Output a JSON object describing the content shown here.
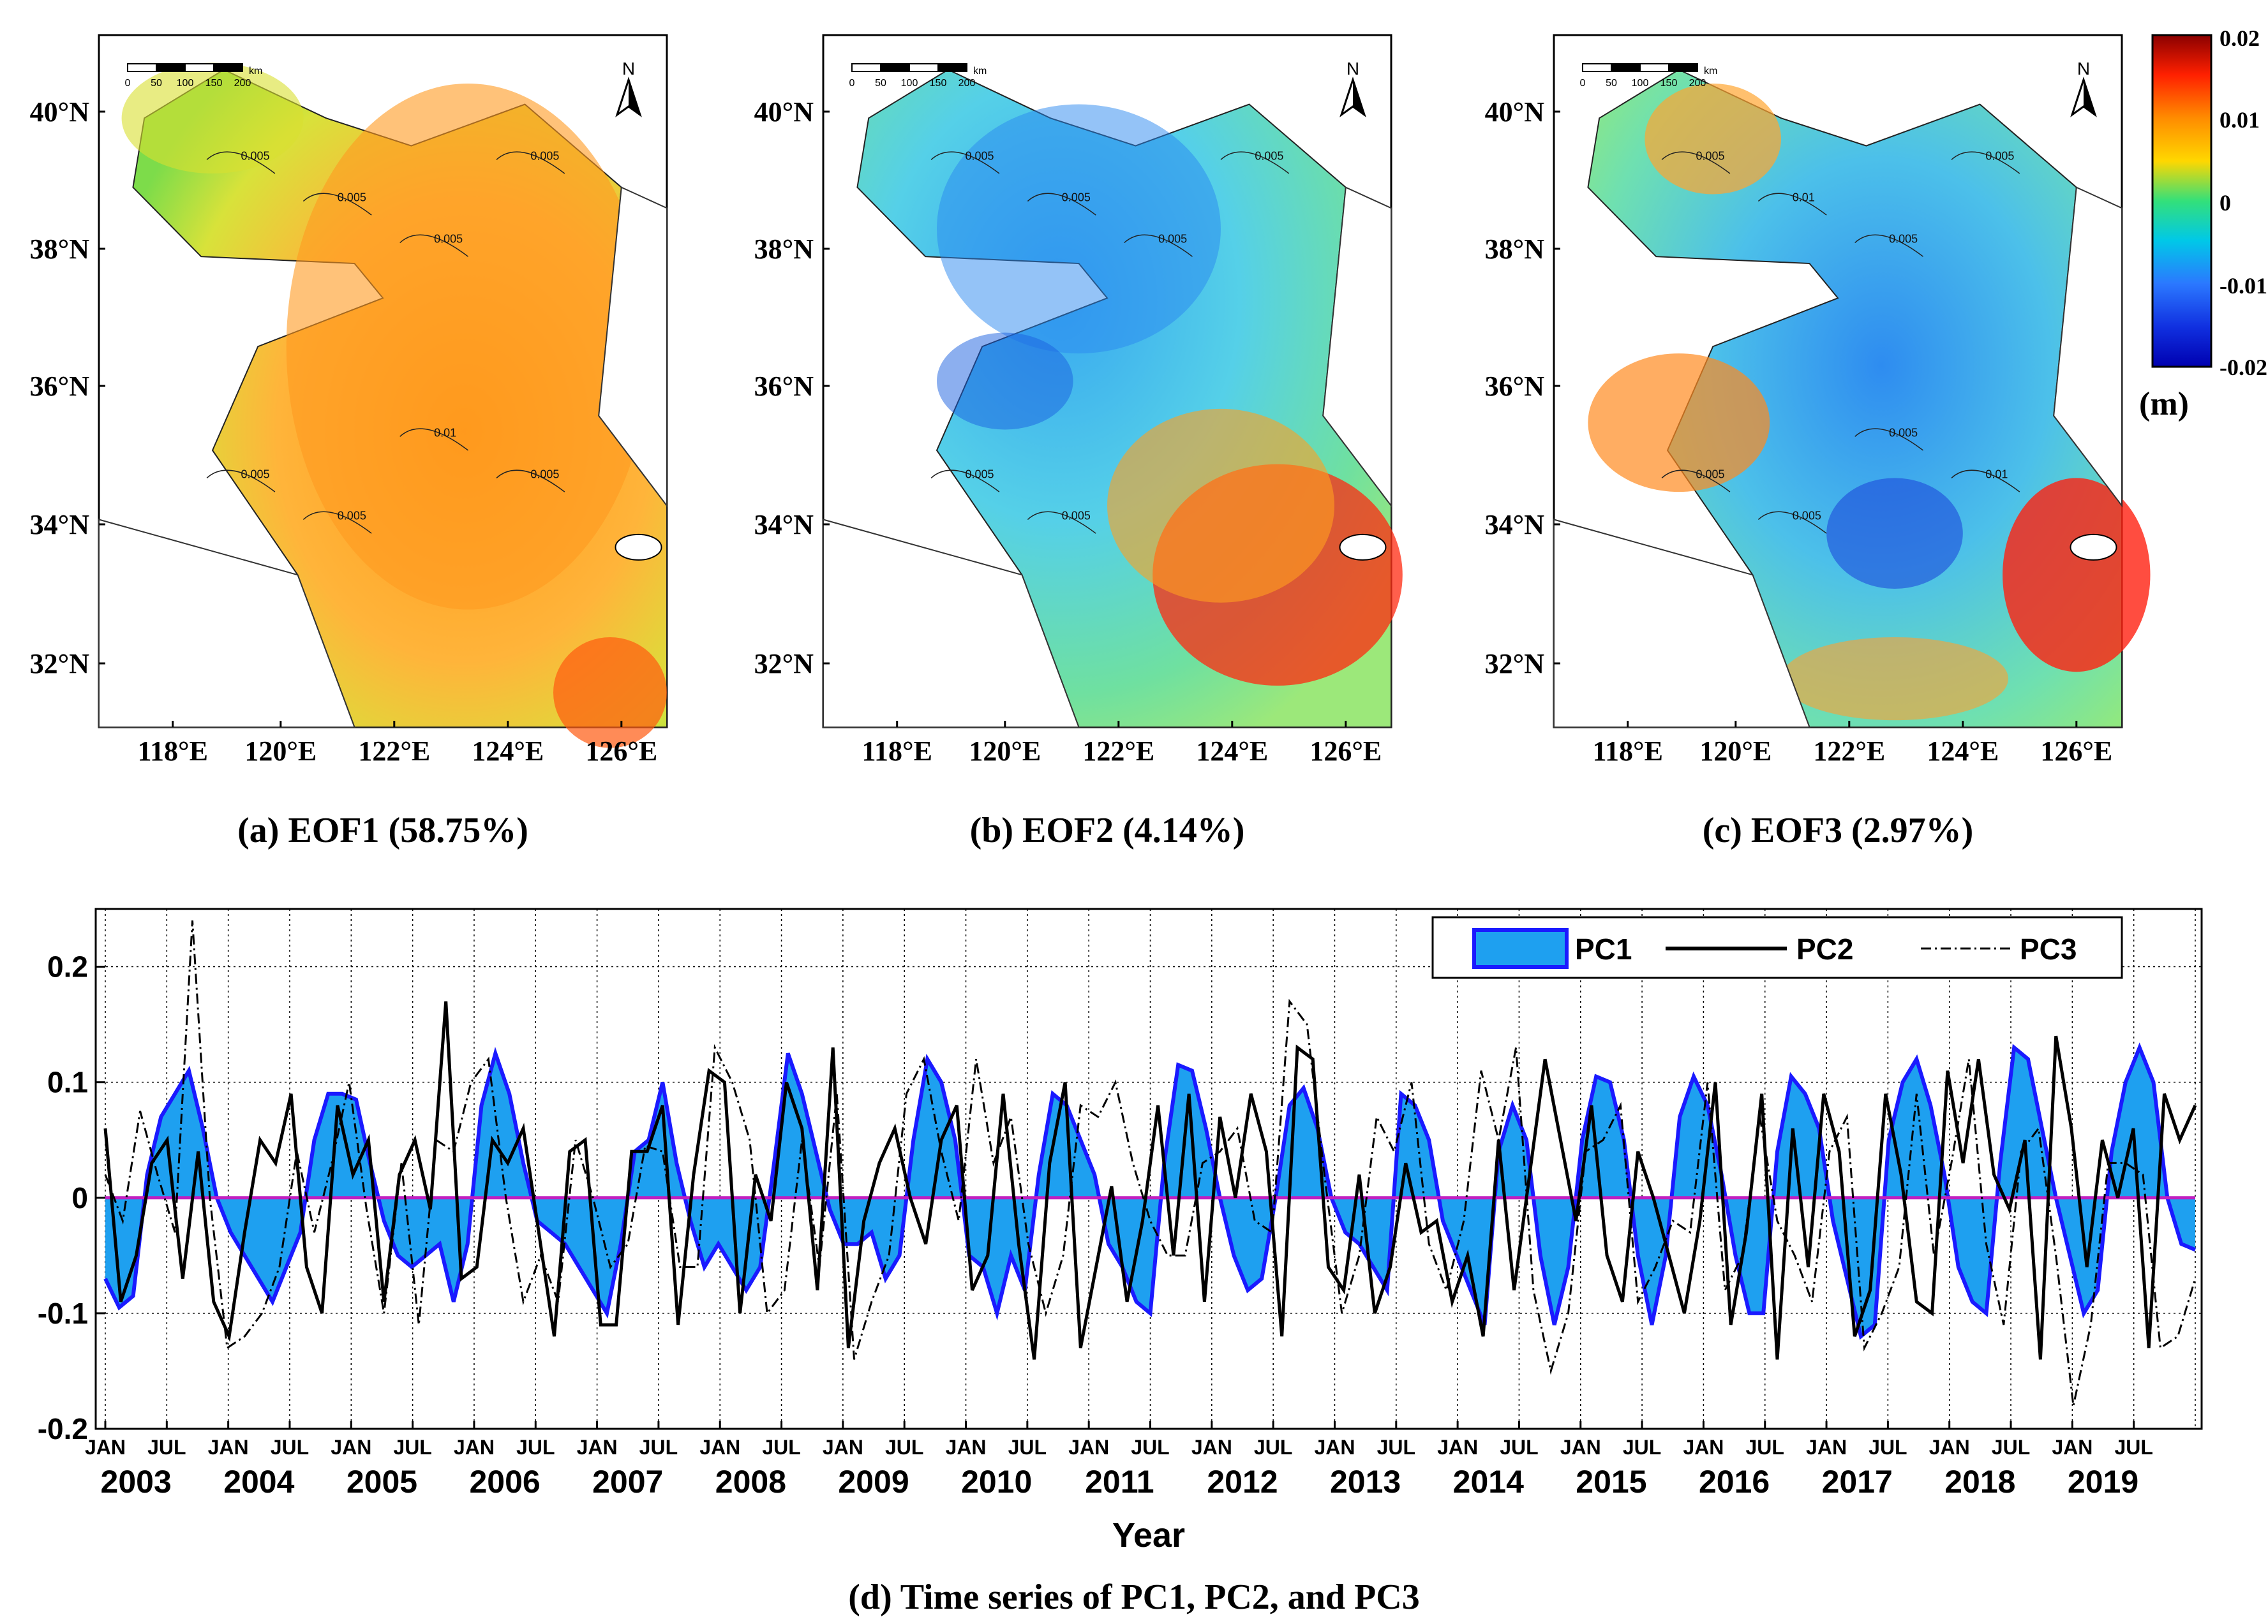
{
  "maps": [
    {
      "id": "eof1",
      "caption": "(a) EOF1 (58.75%)",
      "contour_labels": [
        "0.005",
        "0.005",
        "0.005",
        "0.005",
        "0.005",
        "0.005",
        "0.01",
        "0.005"
      ]
    },
    {
      "id": "eof2",
      "caption": "(b) EOF2 (4.14%)",
      "contour_labels": [
        "0.005",
        "0.005",
        "0.005",
        "0.005",
        "0.005",
        "0.005"
      ]
    },
    {
      "id": "eof3",
      "caption": "(c) EOF3 (2.97%)",
      "contour_labels": [
        "0.005",
        "0.01",
        "0.005",
        "0.005",
        "0.005",
        "0.005",
        "0.005",
        "0.01"
      ]
    }
  ],
  "map_axes": {
    "lat_labels": [
      "40°N",
      "38°N",
      "36°N",
      "34°N",
      "32°N"
    ],
    "lon_labels": [
      "118°E",
      "120°E",
      "122°E",
      "124°E",
      "126°E"
    ],
    "scale_bar_labels": [
      "0",
      "50",
      "100",
      "150",
      "200"
    ],
    "scale_bar_unit": "km",
    "north_label": "N"
  },
  "colorbar": {
    "tick_labels": [
      "0.02",
      "0.01",
      "0",
      "-0.01",
      "-0.02"
    ],
    "unit": "(m)",
    "colors": [
      "#8b0000",
      "#ff2000",
      "#ff8c00",
      "#ffd700",
      "#b8f000",
      "#33e07a",
      "#00c8e8",
      "#2b78ff",
      "#0000b0"
    ]
  },
  "chart_data": {
    "type": "line",
    "title": "(d) Time series of PC1, PC2, and PC3",
    "xlabel": "Year",
    "ylabel": "",
    "ylim": [
      -0.2,
      0.25
    ],
    "yticks": [
      "0.2",
      "0.1",
      "0",
      "-0.1",
      "-0.2"
    ],
    "month_tick_labels": [
      "JAN",
      "JUL"
    ],
    "years": [
      "2003",
      "2004",
      "2005",
      "2006",
      "2007",
      "2008",
      "2009",
      "2010",
      "2011",
      "2012",
      "2013",
      "2014",
      "2015",
      "2016",
      "2017",
      "2018",
      "2019"
    ],
    "series": [
      {
        "name": "PC1",
        "style": "area",
        "fill": "#1ea0f0",
        "stroke": "#1a1aff",
        "values": [
          -0.07,
          -0.095,
          -0.085,
          0.02,
          0.07,
          0.09,
          0.11,
          0.06,
          0.0,
          -0.03,
          -0.05,
          -0.07,
          -0.09,
          -0.06,
          -0.03,
          0.05,
          0.09,
          0.09,
          0.085,
          0.03,
          -0.02,
          -0.05,
          -0.06,
          -0.05,
          -0.04,
          -0.09,
          -0.04,
          0.08,
          0.125,
          0.09,
          0.03,
          -0.02,
          -0.03,
          -0.04,
          -0.06,
          -0.08,
          -0.1,
          -0.04,
          0.04,
          0.05,
          0.1,
          0.03,
          -0.02,
          -0.06,
          -0.04,
          -0.06,
          -0.08,
          -0.06,
          0.03,
          0.125,
          0.09,
          0.04,
          -0.01,
          -0.04,
          -0.04,
          -0.03,
          -0.07,
          -0.05,
          0.05,
          0.12,
          0.1,
          0.05,
          -0.05,
          -0.06,
          -0.1,
          -0.05,
          -0.08,
          0.02,
          0.09,
          0.08,
          0.05,
          0.02,
          -0.04,
          -0.06,
          -0.09,
          -0.1,
          0.03,
          0.115,
          0.11,
          0.06,
          0.0,
          -0.05,
          -0.08,
          -0.07,
          0.0,
          0.08,
          0.095,
          0.06,
          0.0,
          -0.03,
          -0.04,
          -0.06,
          -0.08,
          0.09,
          0.08,
          0.05,
          -0.02,
          -0.05,
          -0.08,
          -0.11,
          0.04,
          0.08,
          0.05,
          -0.05,
          -0.11,
          -0.06,
          0.05,
          0.105,
          0.1,
          0.05,
          -0.05,
          -0.11,
          -0.05,
          0.07,
          0.105,
          0.08,
          0.02,
          -0.05,
          -0.1,
          -0.1,
          0.04,
          0.105,
          0.09,
          0.06,
          -0.02,
          -0.07,
          -0.12,
          -0.11,
          0.05,
          0.1,
          0.12,
          0.08,
          0.02,
          -0.06,
          -0.09,
          -0.1,
          0.03,
          0.13,
          0.12,
          0.06,
          0.0,
          -0.05,
          -0.1,
          -0.08,
          0.04,
          0.1,
          0.13,
          0.1,
          0.0,
          -0.04,
          -0.045
        ]
      },
      {
        "name": "PC2",
        "style": "solid",
        "stroke": "#000000",
        "values": [
          0.06,
          -0.09,
          -0.05,
          0.03,
          0.05,
          -0.07,
          0.04,
          -0.09,
          -0.12,
          -0.03,
          0.05,
          0.03,
          0.09,
          -0.06,
          -0.1,
          0.08,
          0.02,
          0.05,
          -0.09,
          0.02,
          0.05,
          -0.01,
          0.17,
          -0.07,
          -0.06,
          0.05,
          0.03,
          0.06,
          -0.03,
          -0.12,
          0.04,
          0.05,
          -0.11,
          -0.11,
          0.04,
          0.04,
          0.08,
          -0.11,
          0.02,
          0.11,
          0.1,
          -0.1,
          0.02,
          -0.02,
          0.1,
          0.06,
          -0.08,
          0.13,
          -0.13,
          -0.02,
          0.03,
          0.06,
          0.0,
          -0.04,
          0.05,
          0.08,
          -0.08,
          -0.05,
          0.09,
          -0.04,
          -0.14,
          0.03,
          0.1,
          -0.13,
          -0.06,
          0.01,
          -0.09,
          -0.02,
          0.08,
          -0.05,
          0.09,
          -0.09,
          0.07,
          0.0,
          0.09,
          0.04,
          -0.12,
          0.13,
          0.12,
          -0.06,
          -0.08,
          0.02,
          -0.1,
          -0.06,
          0.03,
          -0.03,
          -0.02,
          -0.09,
          -0.05,
          -0.12,
          0.05,
          -0.08,
          0.02,
          0.12,
          0.05,
          -0.02,
          0.08,
          -0.05,
          -0.09,
          0.04,
          0.0,
          -0.05,
          -0.1,
          -0.02,
          0.1,
          -0.11,
          -0.03,
          0.09,
          -0.14,
          0.06,
          -0.06,
          0.09,
          0.04,
          -0.12,
          -0.08,
          0.09,
          0.02,
          -0.09,
          -0.1,
          0.11,
          0.03,
          0.12,
          0.02,
          -0.01,
          0.05,
          -0.14,
          0.14,
          0.06,
          -0.06,
          0.05,
          0.0,
          0.06,
          -0.13,
          0.09,
          0.05,
          0.08
        ]
      },
      {
        "name": "PC3",
        "style": "dashdot",
        "stroke": "#000000",
        "values": [
          0.02,
          -0.02,
          0.075,
          0.02,
          -0.03,
          0.24,
          0.0,
          -0.13,
          -0.12,
          -0.1,
          -0.06,
          0.04,
          -0.03,
          0.03,
          0.1,
          -0.01,
          -0.1,
          0.03,
          -0.11,
          0.05,
          0.04,
          0.1,
          0.12,
          0.0,
          -0.09,
          -0.05,
          -0.09,
          0.05,
          0.0,
          -0.06,
          -0.04,
          0.045,
          0.04,
          -0.06,
          -0.06,
          0.13,
          0.1,
          0.05,
          -0.1,
          -0.08,
          0.05,
          -0.06,
          0.09,
          -0.14,
          -0.09,
          -0.05,
          0.09,
          0.12,
          0.04,
          -0.02,
          0.12,
          0.03,
          0.07,
          -0.04,
          -0.1,
          -0.05,
          0.08,
          0.07,
          0.1,
          0.03,
          -0.02,
          -0.05,
          -0.05,
          0.03,
          0.04,
          0.06,
          -0.02,
          -0.03,
          0.17,
          0.15,
          0.02,
          -0.1,
          -0.05,
          0.07,
          0.04,
          0.1,
          -0.04,
          -0.08,
          -0.02,
          0.11,
          0.05,
          0.13,
          -0.08,
          -0.15,
          -0.1,
          0.04,
          0.05,
          0.08,
          -0.09,
          -0.06,
          -0.02,
          -0.03,
          0.1,
          -0.08,
          -0.05,
          0.07,
          -0.02,
          -0.05,
          -0.09,
          0.04,
          0.07,
          -0.13,
          -0.1,
          -0.06,
          0.09,
          -0.05,
          0.03,
          0.12,
          -0.04,
          -0.11,
          0.04,
          0.06,
          -0.05,
          -0.18,
          -0.11,
          0.03,
          0.03,
          0.02,
          -0.13,
          -0.12,
          -0.07
        ]
      }
    ],
    "legend": [
      "PC1",
      "PC2",
      "PC3"
    ],
    "grid": true,
    "legend_position": "top-right"
  }
}
